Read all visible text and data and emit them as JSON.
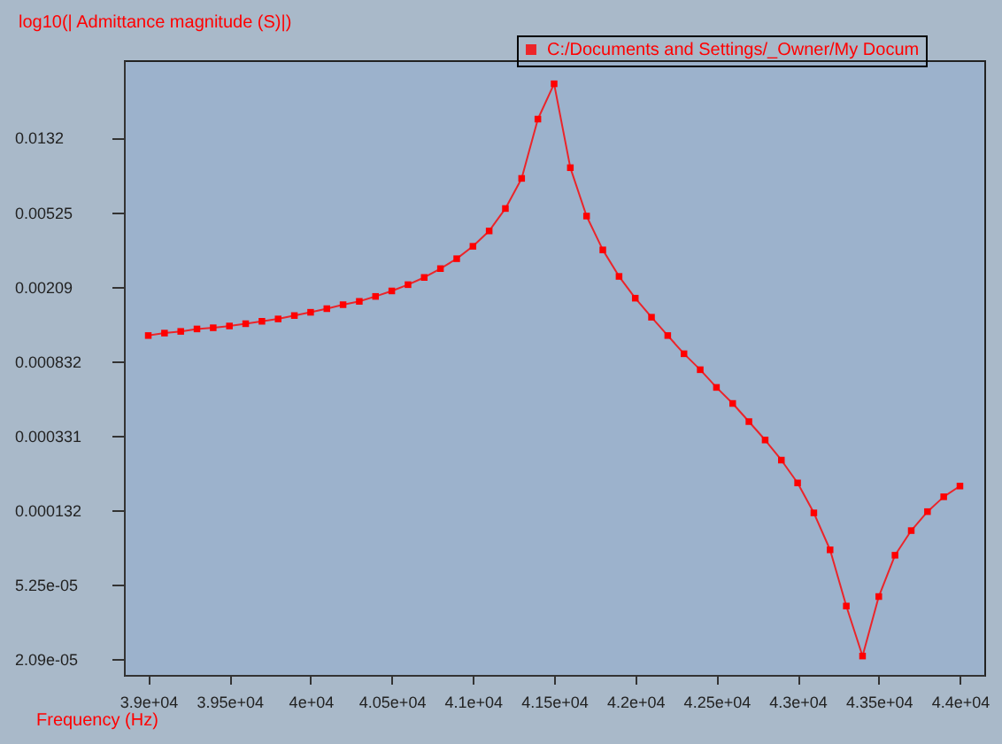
{
  "chart_data": {
    "type": "line",
    "xlabel": "Frequency (Hz)",
    "ylabel": "log10(| Admittance magnitude (S)|)",
    "x": [
      39000,
      39100,
      39200,
      39300,
      39400,
      39500,
      39600,
      39700,
      39800,
      39900,
      40000,
      40100,
      40200,
      40300,
      40400,
      40500,
      40600,
      40700,
      40800,
      40900,
      41000,
      41100,
      41200,
      41300,
      41400,
      41500,
      41600,
      41700,
      41800,
      41900,
      42000,
      42100,
      42200,
      42300,
      42400,
      42500,
      42600,
      42700,
      42800,
      42900,
      43000,
      43100,
      43200,
      43300,
      43400,
      43500,
      43600,
      43700,
      43800,
      43900,
      44000
    ],
    "series": [
      {
        "name": "C:/Documents and Settings/_Owner/My Docum",
        "color": "#ff0000",
        "values": [
          0.00114,
          0.001175,
          0.0012,
          0.001237,
          0.001255,
          0.001283,
          0.00132,
          0.00136,
          0.0014,
          0.00146,
          0.00152,
          0.00159,
          0.00167,
          0.00174,
          0.00185,
          0.00198,
          0.00214,
          0.00234,
          0.00261,
          0.00295,
          0.00344,
          0.00416,
          0.00549,
          0.00797,
          0.0166,
          0.0257,
          0.0091,
          0.005,
          0.00329,
          0.00237,
          0.00181,
          0.00143,
          0.00114,
          0.00091,
          0.000747,
          0.0006,
          0.000492,
          0.000393,
          0.000313,
          0.000244,
          0.000184,
          0.000127,
          8.04e-05,
          4.01e-05,
          2.16e-05,
          4.51e-05,
          7.52e-05,
          0.000102,
          0.000129,
          0.000155,
          0.000177
        ]
      }
    ],
    "log": true,
    "xlim": [
      38850,
      44150
    ],
    "ylim": [
      1.71e-05,
      0.0344
    ],
    "xticks": [
      {
        "value": 39000,
        "label": "3.9e+04"
      },
      {
        "value": 39500,
        "label": "3.95e+04"
      },
      {
        "value": 40000,
        "label": "4e+04"
      },
      {
        "value": 40500,
        "label": "4.05e+04"
      },
      {
        "value": 41000,
        "label": "4.1e+04"
      },
      {
        "value": 41500,
        "label": "4.15e+04"
      },
      {
        "value": 42000,
        "label": "4.2e+04"
      },
      {
        "value": 42500,
        "label": "4.25e+04"
      },
      {
        "value": 43000,
        "label": "4.3e+04"
      },
      {
        "value": 43500,
        "label": "4.35e+04"
      },
      {
        "value": 44000,
        "label": "4.4e+04"
      }
    ],
    "yticks": [
      {
        "value": 2.09e-05,
        "label": "2.09e-05"
      },
      {
        "value": 5.25e-05,
        "label": "5.25e-05"
      },
      0.000132,
      0.000331,
      0.000832,
      0.00209,
      0.00525,
      0.0132
    ],
    "marker": "square",
    "line_style": "solid",
    "grid": false,
    "legend": "top right"
  }
}
